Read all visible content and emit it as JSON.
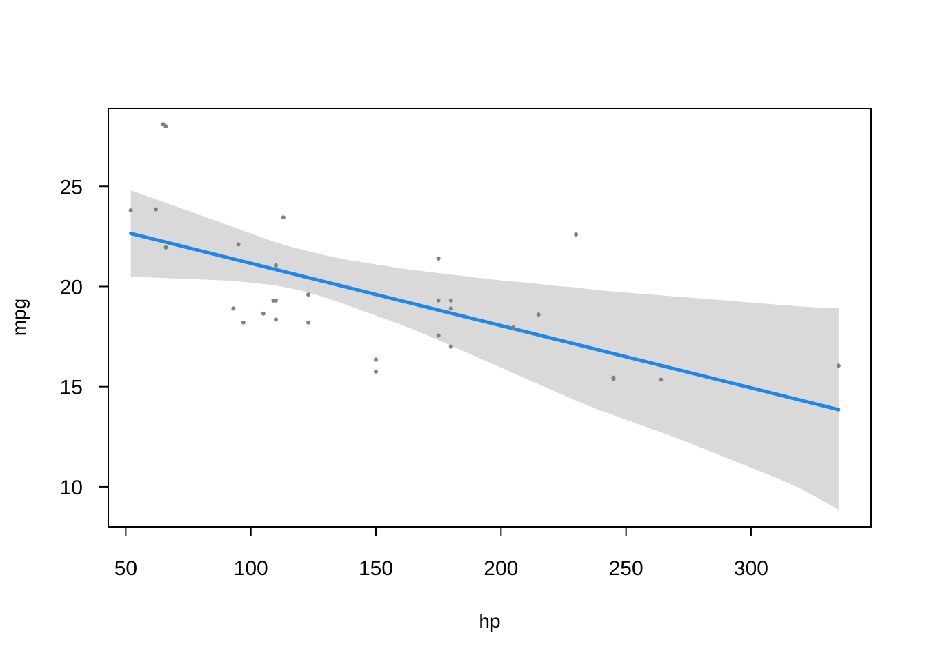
{
  "chart_data": {
    "type": "scatter",
    "title": "",
    "xlabel": "hp",
    "ylabel": "mpg",
    "xlim": [
      43,
      348
    ],
    "ylim": [
      8,
      28.9
    ],
    "xticks": [
      50,
      100,
      150,
      200,
      250,
      300
    ],
    "yticks": [
      10,
      15,
      20,
      25
    ],
    "grid": false,
    "legend": "none",
    "points": {
      "color": "#808080",
      "x": [
        52,
        62,
        65,
        66,
        66,
        93,
        95,
        97,
        105,
        109,
        110,
        110,
        110,
        113,
        123,
        123,
        150,
        150,
        175,
        175,
        175,
        180,
        180,
        180,
        205,
        215,
        230,
        245,
        245,
        264,
        335
      ],
      "y": [
        23.8,
        23.85,
        28.1,
        28.0,
        21.95,
        18.9,
        22.1,
        18.2,
        18.65,
        19.3,
        21.05,
        19.3,
        18.35,
        23.45,
        19.6,
        18.2,
        16.35,
        15.75,
        21.4,
        19.3,
        17.55,
        19.3,
        18.9,
        17.0,
        17.95,
        18.6,
        22.6,
        15.4,
        15.45,
        15.35,
        16.05
      ]
    },
    "fit_line": {
      "color": "#1f87e8",
      "x": [
        52,
        335
      ],
      "y": [
        22.65,
        13.85
      ]
    },
    "confidence_band": {
      "color": "#d9d9d9",
      "x": [
        52,
        60,
        70,
        80,
        90,
        100,
        110,
        120,
        130,
        140,
        150,
        160,
        170,
        180,
        190,
        200,
        210,
        220,
        230,
        240,
        250,
        260,
        270,
        280,
        290,
        300,
        310,
        320,
        335
      ],
      "upper": [
        24.8,
        24.45,
        24.0,
        23.55,
        23.1,
        22.65,
        22.2,
        21.85,
        21.55,
        21.3,
        21.1,
        20.9,
        20.75,
        20.6,
        20.45,
        20.3,
        20.2,
        20.05,
        19.95,
        19.8,
        19.7,
        19.6,
        19.5,
        19.4,
        19.3,
        19.2,
        19.1,
        19.0,
        18.9
      ],
      "lower": [
        20.5,
        20.45,
        20.4,
        20.35,
        20.3,
        20.2,
        20.05,
        19.8,
        19.45,
        19.0,
        18.55,
        18.1,
        17.6,
        17.05,
        16.5,
        15.95,
        15.4,
        14.85,
        14.3,
        13.8,
        13.35,
        12.9,
        12.45,
        11.95,
        11.45,
        10.95,
        10.45,
        9.9,
        8.85
      ]
    }
  }
}
